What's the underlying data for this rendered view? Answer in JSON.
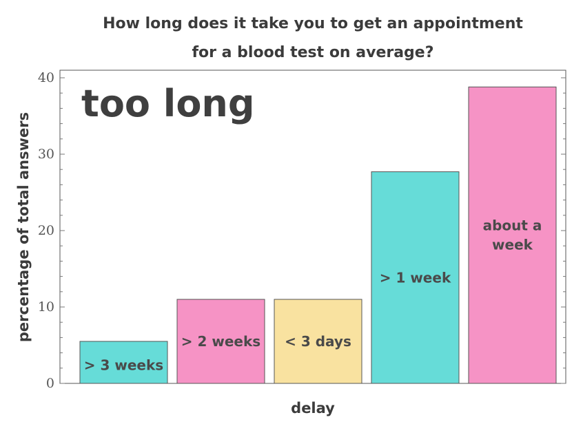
{
  "chart_data": {
    "type": "bar",
    "title_lines": [
      "How long does it take you to get an appointment",
      "for a blood test on average?"
    ],
    "xlabel": "delay",
    "ylabel": "percentage of total answers",
    "ylim": [
      0,
      40
    ],
    "yticks": [
      "0",
      "10",
      "20",
      "30",
      "40"
    ],
    "annotation": "too long",
    "categories": [
      [
        "> 3 weeks"
      ],
      [
        "> 2 weeks"
      ],
      [
        "< 3 days"
      ],
      [
        "> 1 week"
      ],
      [
        "about a",
        "week"
      ]
    ],
    "values": [
      5.5,
      11,
      11,
      27.7,
      38.8
    ],
    "colors": [
      "#66dcd8",
      "#f693c5",
      "#f9e2a0",
      "#66dcd8",
      "#f693c5"
    ],
    "grid": false,
    "legend": "none"
  }
}
